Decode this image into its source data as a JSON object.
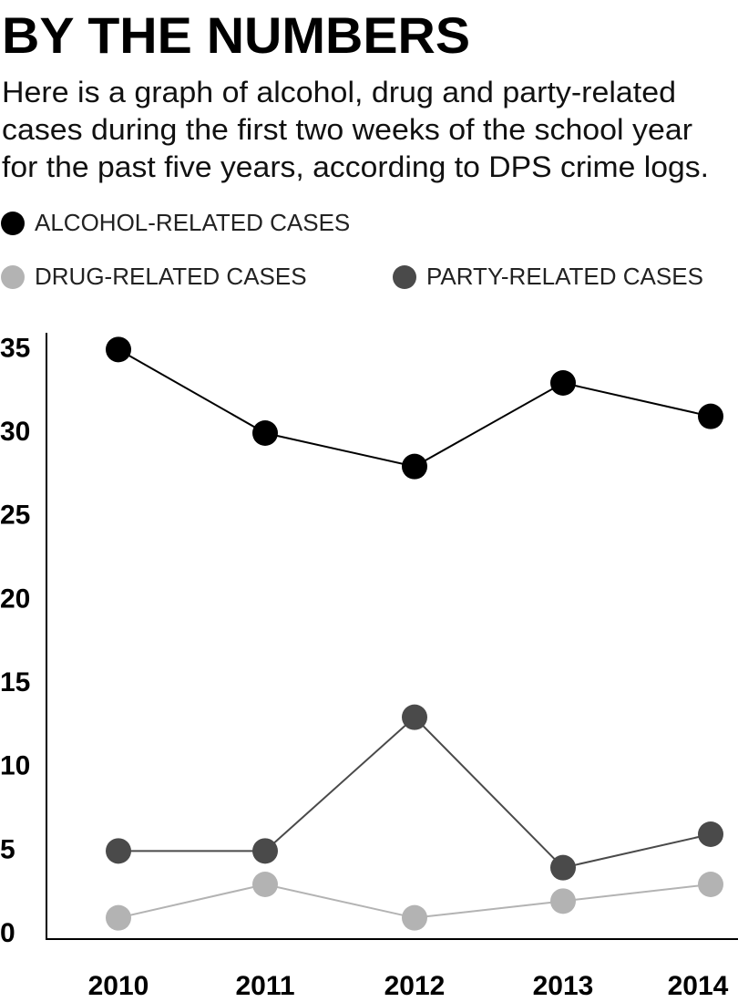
{
  "chart_data": {
    "type": "line",
    "title": "BY THE NUMBERS",
    "subtitle": [
      "Here is a graph of alcohol, drug and party-related",
      "cases during the first two weeks of the school year",
      "for the past five years, according to DPS crime logs."
    ],
    "categories": [
      "2010",
      "2011",
      "2012",
      "2013",
      "2014"
    ],
    "series": [
      {
        "name": "ALCOHOL-RELATED CASES",
        "color": "#000000",
        "values": [
          35,
          30,
          28,
          33,
          31
        ]
      },
      {
        "name": "DRUG-RELATED CASES",
        "color": "#b3b3b3",
        "values": [
          1,
          3,
          1,
          2,
          3
        ]
      },
      {
        "name": "PARTY-RELATED CASES",
        "color": "#4a4a4a",
        "values": [
          5,
          5,
          13,
          4,
          6
        ]
      }
    ],
    "ylim": [
      0,
      36
    ],
    "yticks": [
      0,
      5,
      10,
      15,
      20,
      25,
      30,
      35
    ],
    "grid": false
  }
}
